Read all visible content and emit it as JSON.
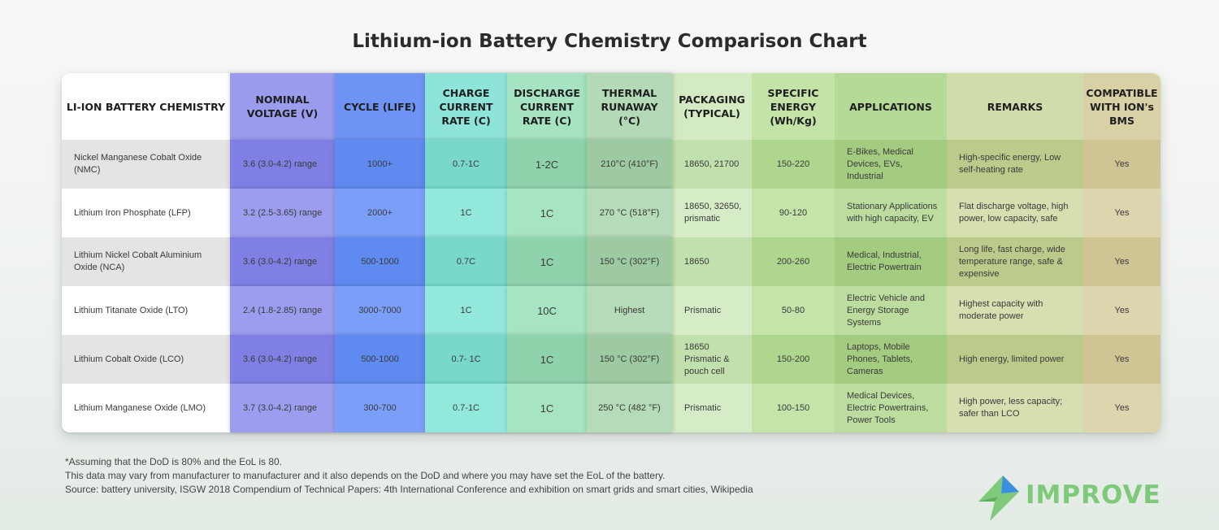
{
  "title": "Lithium-ion Battery Chemistry Comparison Chart",
  "columns": [
    {
      "label": "LI-ION BATTERY CHEMISTRY",
      "head_bg": "#ffffff",
      "bg_a": "#e4e4e4",
      "bg_b": "#ffffff"
    },
    {
      "label": "NOMINAL VOLTAGE (V)",
      "head_bg": "#9c9cef",
      "bg_a": "#7f7fe4",
      "bg_b": "#9d9df0"
    },
    {
      "label": "CYCLE (LIFE)",
      "head_bg": "#6f93f5",
      "bg_a": "#5f8aef",
      "bg_b": "#7b9ff8"
    },
    {
      "label": "CHARGE CURRENT RATE (C)",
      "head_bg": "#8ee4d9",
      "bg_a": "#78d8cb",
      "bg_b": "#93e8dc"
    },
    {
      "label": "DISCHARGE CURRENT RATE (C)",
      "head_bg": "#a6e3c2",
      "bg_a": "#8fd3ad",
      "bg_b": "#a7e4c3"
    },
    {
      "label": "THERMAL RUNAWAY (°C)",
      "head_bg": "#b3d9b6",
      "bg_a": "#9ecaa2",
      "bg_b": "#b5dbb8"
    },
    {
      "label": "PACKAGING (TYPICAL)",
      "head_bg": "#d3eac3",
      "bg_a": "#c2e0ad",
      "bg_b": "#d6ecc6"
    },
    {
      "label": "SPECIFIC ENERGY (Wh/Kg)",
      "head_bg": "#c3e3a7",
      "bg_a": "#afd68f",
      "bg_b": "#c4e4a9"
    },
    {
      "label": "APPLICATIONS",
      "head_bg": "#b5d996",
      "bg_a": "#a4cc80",
      "bg_b": "#bddc9f"
    },
    {
      "label": "REMARKS",
      "head_bg": "#d0dcab",
      "bg_a": "#bccb8b",
      "bg_b": "#d5dfb0"
    },
    {
      "label": "COMPATIBLE WITH ION's BMS",
      "head_bg": "#d9d1a6",
      "bg_a": "#cfc494",
      "bg_b": "#ddd5ae"
    }
  ],
  "rows": [
    [
      "Nickel Manganese Cobalt Oxide (NMC)",
      "3.6 (3.0-4.2) range",
      "1000+",
      "0.7-1C",
      "1-2C",
      "210°C (410°F)",
      "18650, 21700",
      "150-220",
      "E-Bikes, Medical Devices, EVs, Industrial",
      "High-specific energy, Low self-heating rate",
      "Yes"
    ],
    [
      "Lithium Iron Phosphate (LFP)",
      "3.2 (2.5-3.65) range",
      "2000+",
      "1C",
      "1C",
      "270 °C (518°F)",
      "18650, 32650, prismatic",
      "90-120",
      "Stationary Applications with high capacity, EV",
      "Flat discharge voltage, high power, low capacity, safe",
      "Yes"
    ],
    [
      "Lithium Nickel Cobalt Aluminium Oxide (NCA)",
      "3.6 (3.0-4.2) range",
      "500-1000",
      "0.7C",
      "1C",
      "150 °C (302°F)",
      "18650",
      "200-260",
      "Medical, Industrial, Electric Powertrain",
      "Long life, fast charge, wide temperature range, safe & expensive",
      "Yes"
    ],
    [
      "Lithium Titanate Oxide (LTO)",
      "2.4 (1.8-2.85) range",
      "3000-7000",
      "1C",
      "10C",
      "Highest",
      "Prismatic",
      "50-80",
      "Electric Vehicle and Energy Storage Systems",
      "Highest capacity with moderate power",
      "Yes"
    ],
    [
      "Lithium Cobalt Oxide (LCO)",
      "3.6 (3.0-4.2) range",
      "500-1000",
      "0.7- 1C",
      "1C",
      "150 °C (302°F)",
      "18650 Prismatic & pouch cell",
      "150-200",
      "Laptops, Mobile Phones, Tablets, Cameras",
      "High energy, limited power",
      "Yes"
    ],
    [
      "Lithium Manganese Oxide (LMO)",
      "3.7 (3.0-4.2) range",
      "300-700",
      "0.7-1C",
      "1C",
      "250 °C (482 °F)",
      "Prismatic",
      "100-150",
      "Medical Devices, Electric Powertrains, Power Tools",
      "High power, less capacity; safer than LCO",
      "Yes"
    ]
  ],
  "footer": [
    "*Assuming that the DoD is 80% and the EoL is 80.",
    "This data may vary from manufacturer to manufacturer and it also depends on the DoD and where you may have set the EoL of the battery.",
    "Source: battery university, ISGW 2018 Compendium of Technical Papers: 4th International Conference and exhibition on smart grids and smart cities, Wikipedia"
  ],
  "logo": {
    "text": "IMPROVE",
    "icon": "lightning-bolt-icon",
    "color_green": "#7fc97a",
    "color_blue": "#3a8fe0"
  }
}
